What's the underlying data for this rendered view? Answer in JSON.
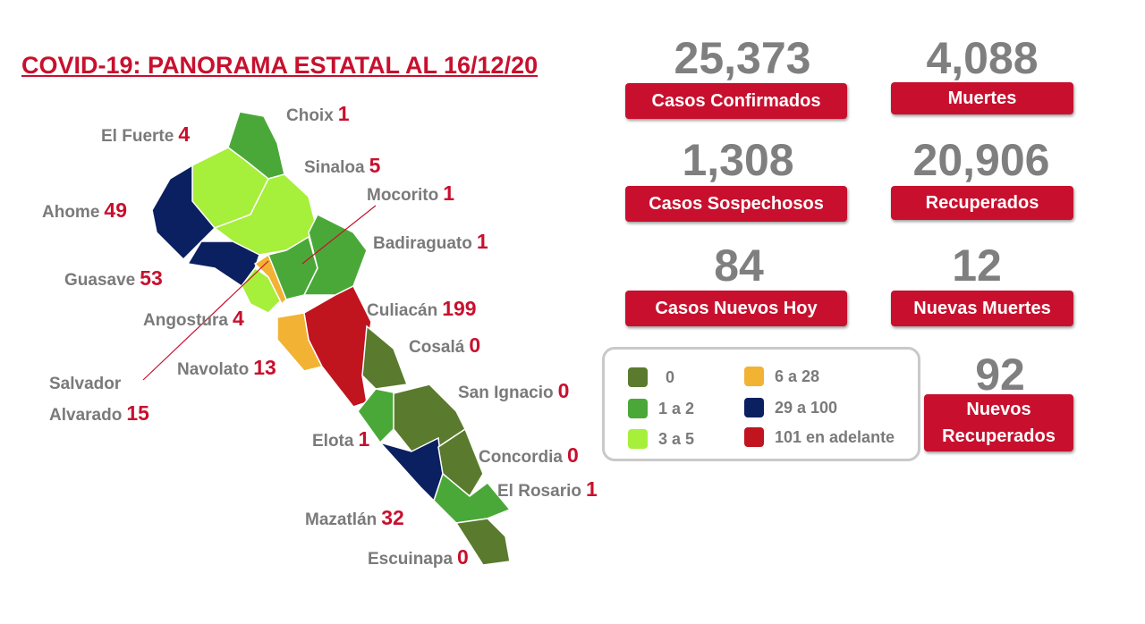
{
  "header": {
    "title": "COVID-19: PANORAMA ESTATAL AL 16/12/20"
  },
  "municipalities": [
    {
      "name": "Choix",
      "value": "1"
    },
    {
      "name": "El Fuerte",
      "value": "4"
    },
    {
      "name": "Sinaloa",
      "value": "5"
    },
    {
      "name": "Mocorito",
      "value": "1"
    },
    {
      "name": "Ahome",
      "value": "49"
    },
    {
      "name": "Badiraguato",
      "value": "1"
    },
    {
      "name": "Guasave",
      "value": "53"
    },
    {
      "name": "Angostura",
      "value": "4"
    },
    {
      "name": "Culiacán",
      "value": "199"
    },
    {
      "name": "Cosalá",
      "value": "0"
    },
    {
      "name": "Navolato",
      "value": "13"
    },
    {
      "name": "Salvador Alvarado",
      "value": "15"
    },
    {
      "name": "San Ignacio",
      "value": "0"
    },
    {
      "name": "Elota",
      "value": "1"
    },
    {
      "name": "Concordia",
      "value": "0"
    },
    {
      "name": "El Rosario",
      "value": "1"
    },
    {
      "name": "Mazatlán",
      "value": "32"
    },
    {
      "name": "Escuinapa",
      "value": "0"
    }
  ],
  "stats": [
    {
      "value": "25,373",
      "label": "Casos Confirmados"
    },
    {
      "value": "4,088",
      "label": "Muertes"
    },
    {
      "value": "1,308",
      "label": "Casos Sospechosos"
    },
    {
      "value": "20,906",
      "label": "Recuperados"
    },
    {
      "value": "84",
      "label": "Casos Nuevos Hoy"
    },
    {
      "value": "12",
      "label": "Nuevas Muertes"
    },
    {
      "value": "92",
      "label": "Nuevos Recuperados"
    }
  ],
  "legend": [
    {
      "label": "0",
      "color": "#5a7a2e"
    },
    {
      "label": "1 a 2",
      "color": "#4aa838"
    },
    {
      "label": "3 a 5",
      "color": "#a6ef3a"
    },
    {
      "label": "6 a 28",
      "color": "#f2b233"
    },
    {
      "label": "29 a 100",
      "color": "#0b2060"
    },
    {
      "label": "101 en adelante",
      "color": "#c0141f"
    }
  ]
}
